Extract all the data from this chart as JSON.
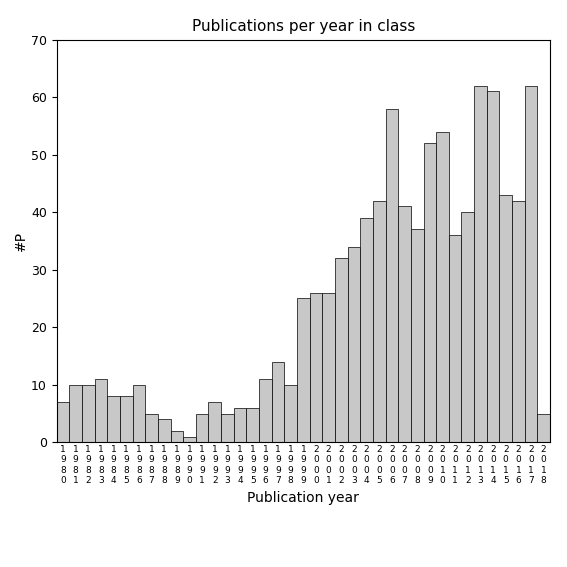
{
  "title": "Publications per year in class",
  "xlabel": "Publication year",
  "ylabel": "#P",
  "ylim": [
    0,
    70
  ],
  "yticks": [
    0,
    10,
    20,
    30,
    40,
    50,
    60,
    70
  ],
  "years": [
    "1980",
    "1981",
    "1982",
    "1983",
    "1984",
    "1985",
    "1986",
    "1987",
    "1988",
    "1989",
    "1990",
    "1991",
    "1992",
    "1993",
    "1994",
    "1995",
    "1996",
    "1997",
    "1998",
    "1999",
    "2000",
    "2001",
    "2002",
    "2003",
    "2004",
    "2005",
    "2006",
    "2007",
    "2008",
    "2009",
    "2010",
    "2011",
    "2012",
    "2013",
    "2014",
    "2015",
    "2016",
    "2017",
    "2018"
  ],
  "values": [
    7,
    10,
    10,
    11,
    8,
    8,
    10,
    5,
    4,
    2,
    1,
    5,
    7,
    5,
    6,
    6,
    11,
    14,
    10,
    25,
    26,
    26,
    32,
    34,
    39,
    42,
    58,
    41,
    37,
    52,
    54,
    36,
    40,
    62,
    61,
    43,
    42,
    62,
    5
  ],
  "bar_color": "#c8c8c8",
  "bar_edgecolor": "#000000",
  "background_color": "#ffffff",
  "title_fontsize": 11,
  "axis_label_fontsize": 10,
  "tick_fontsize": 9,
  "ylabel_fontsize": 10
}
